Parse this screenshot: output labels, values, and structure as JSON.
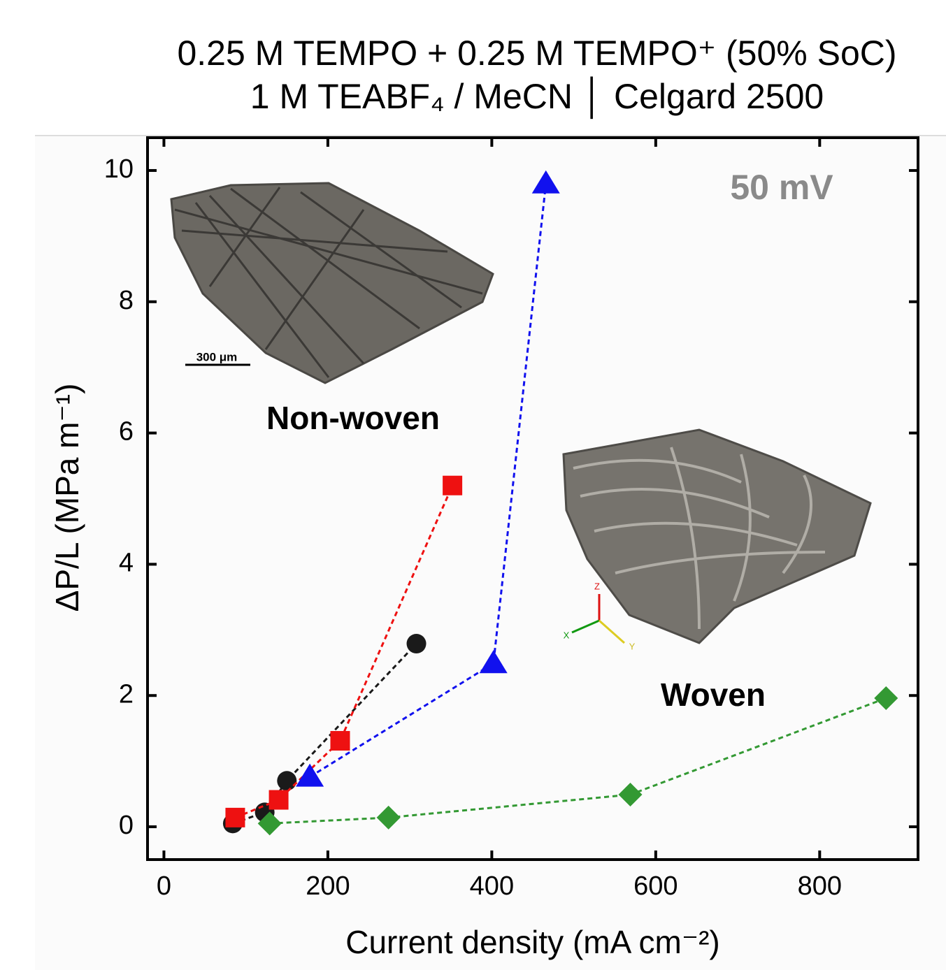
{
  "chart_data": {
    "type": "scatter",
    "title": [
      "0.25 M TEMPO + 0.25 M TEMPO⁺ (50% SoC)",
      "1 M TEABF₄ / MeCN │  Celgard 2500"
    ],
    "x_label": "Current density (mA cm⁻²)",
    "y_label": "ΔP/L (MPa m⁻¹)",
    "annotations": [
      "50 mV",
      "Non-woven",
      "Woven",
      "300 μm",
      "Z",
      "X",
      "Y"
    ],
    "xlim": [
      -20,
      920
    ],
    "ylim": [
      -0.5,
      10.5
    ],
    "xticks": [
      0,
      200,
      400,
      600,
      800
    ],
    "yticks": [
      0,
      2,
      4,
      6,
      8,
      10
    ],
    "grid": false,
    "series": [
      {
        "color": "#1a1a1a",
        "marker": "circle",
        "x": [
          84,
          123,
          150,
          308
        ],
        "values": [
          0.05,
          0.22,
          0.7,
          2.79
        ]
      },
      {
        "color": "#ee1111",
        "marker": "square",
        "x": [
          87,
          140,
          215,
          352
        ],
        "values": [
          0.14,
          0.41,
          1.31,
          5.2
        ]
      },
      {
        "color": "#1111ee",
        "marker": "triangle",
        "x": [
          178,
          402,
          466
        ],
        "values": [
          0.76,
          2.49,
          9.8
        ]
      },
      {
        "color": "#339933",
        "marker": "diamond",
        "x": [
          129,
          274,
          569,
          881
        ],
        "values": [
          0.05,
          0.14,
          0.49,
          1.96
        ]
      }
    ]
  }
}
